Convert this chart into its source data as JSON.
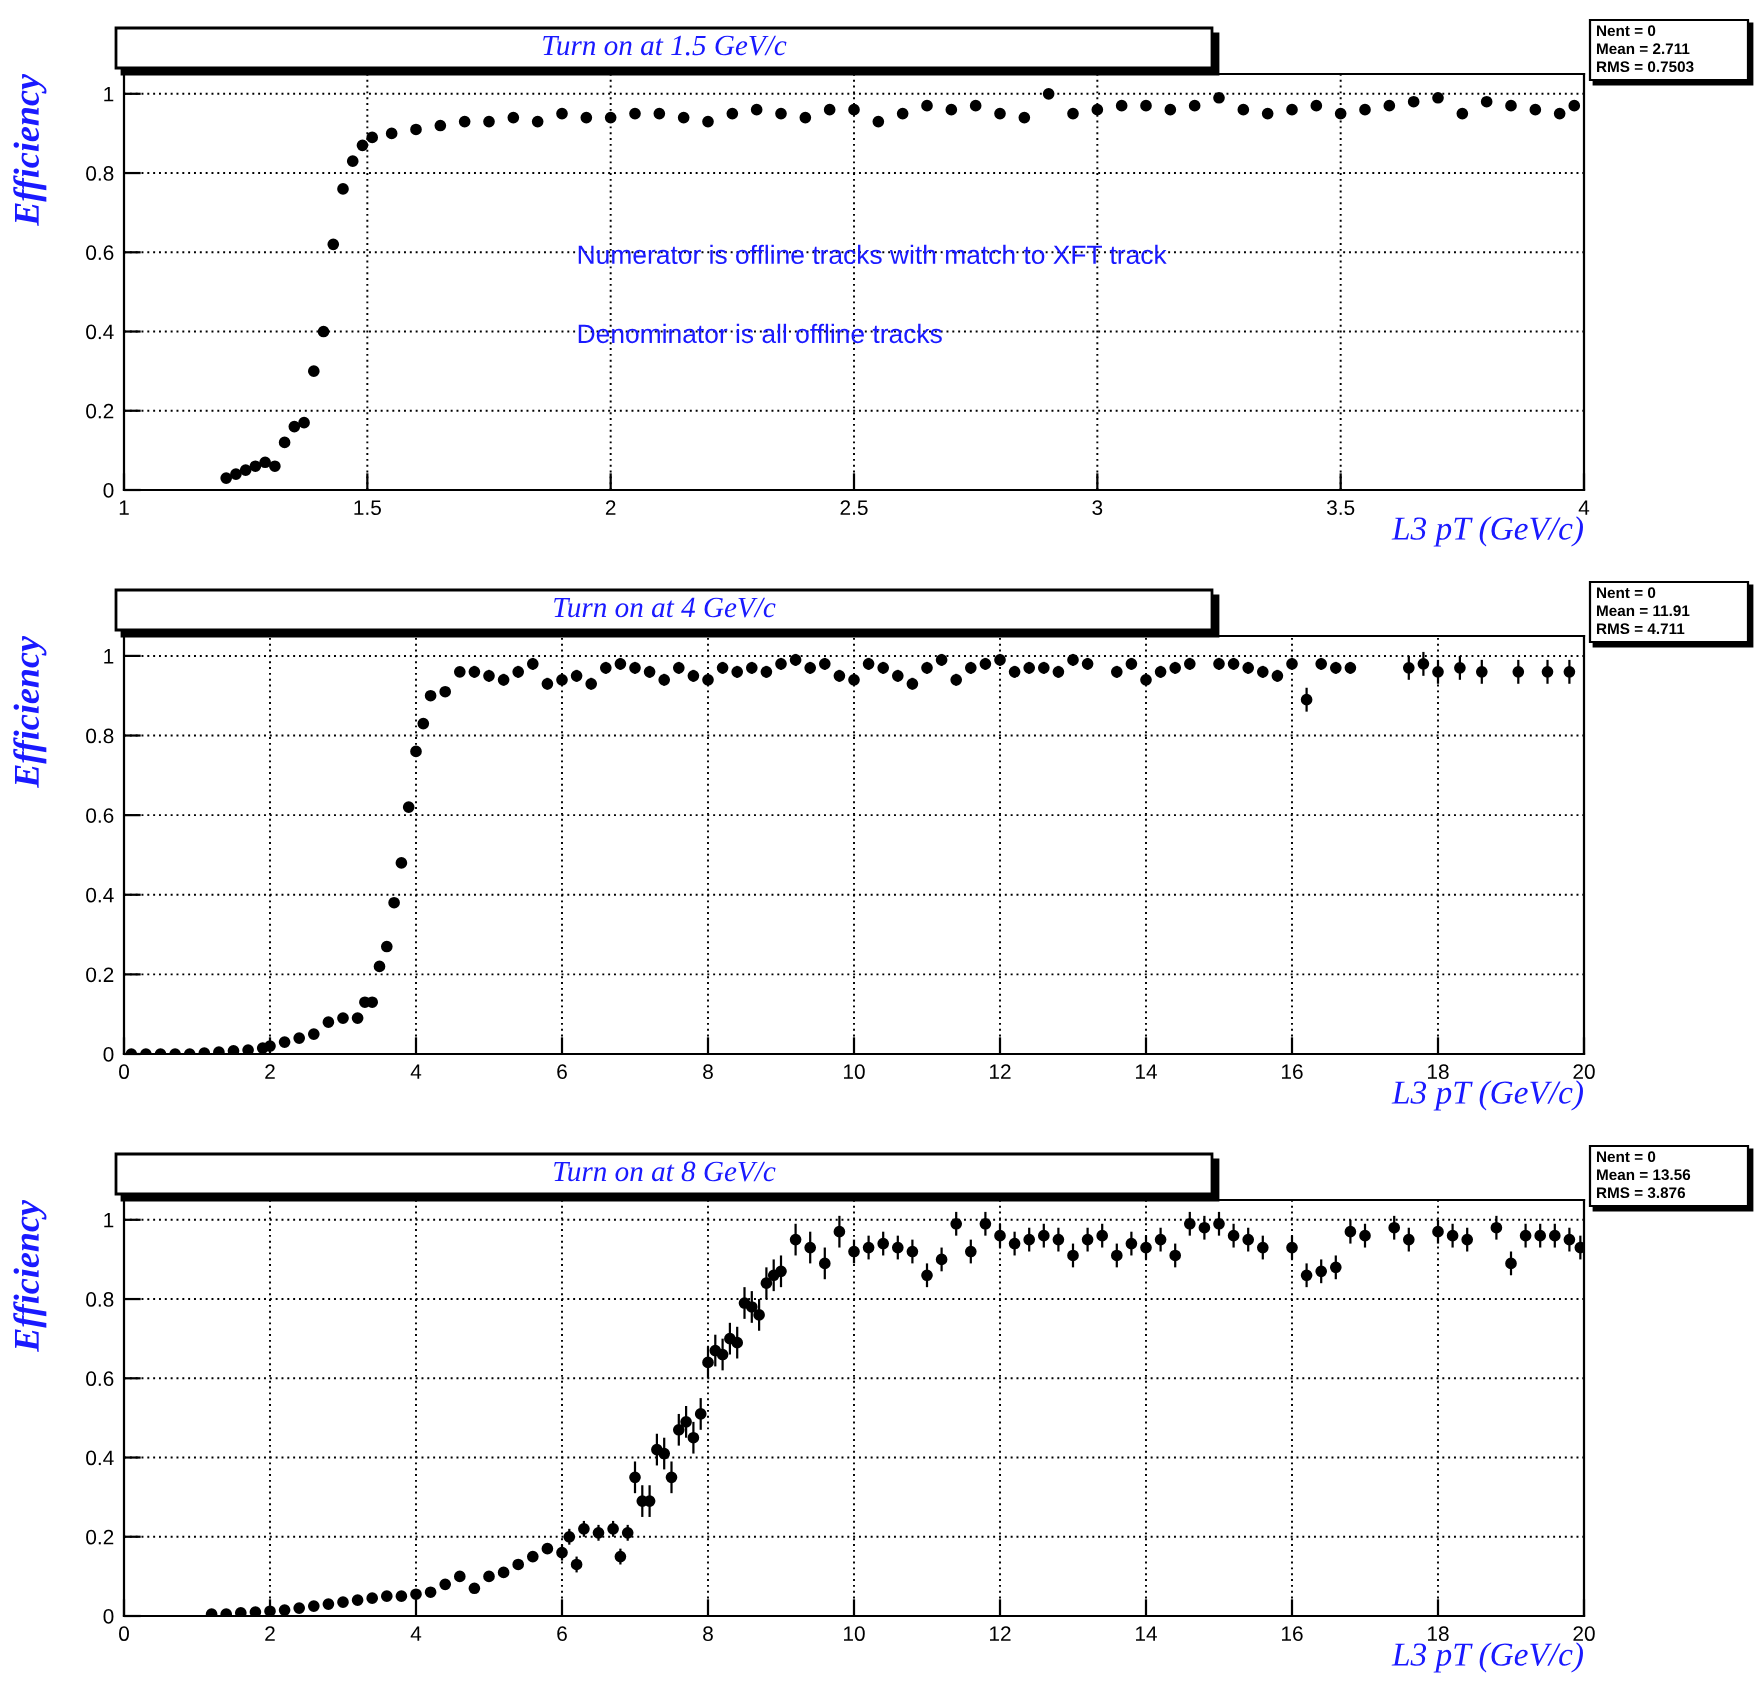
{
  "chart_data": [
    {
      "type": "scatter",
      "title": "Turn on at 1.5 GeV/c",
      "xlabel": "L3 pT (GeV/c)",
      "ylabel": "Efficiency",
      "annotations": [
        "Nent = 0",
        "Mean = 2.711",
        "RMS = 0.7503",
        "Numerator is offline tracks with match to XFT track",
        "Denominator is all offline tracks"
      ],
      "xlim": [
        1,
        4
      ],
      "xticks": [
        1,
        1.5,
        2,
        2.5,
        3,
        3.5,
        4
      ],
      "ylim": [
        0,
        1.05
      ],
      "yticks": [
        0,
        0.2,
        0.4,
        0.6,
        0.8,
        1
      ],
      "grid": true,
      "marker": "circle",
      "series": [
        {
          "color": "#000000",
          "x": [
            1.21,
            1.23,
            1.25,
            1.27,
            1.29,
            1.31,
            1.33,
            1.35,
            1.37,
            1.39,
            1.41,
            1.43,
            1.45,
            1.47,
            1.49,
            1.51,
            1.55,
            1.6,
            1.65,
            1.7,
            1.75,
            1.8,
            1.85,
            1.9,
            1.95,
            2.0,
            2.05,
            2.1,
            2.15,
            2.2,
            2.25,
            2.3,
            2.35,
            2.4,
            2.45,
            2.5,
            2.55,
            2.6,
            2.65,
            2.7,
            2.75,
            2.8,
            2.85,
            2.9,
            2.95,
            3.0,
            3.05,
            3.1,
            3.15,
            3.2,
            3.25,
            3.3,
            3.35,
            3.4,
            3.45,
            3.5,
            3.55,
            3.6,
            3.65,
            3.7,
            3.75,
            3.8,
            3.85,
            3.9,
            3.95,
            3.98
          ],
          "values": [
            0.03,
            0.04,
            0.05,
            0.06,
            0.07,
            0.06,
            0.12,
            0.16,
            0.17,
            0.3,
            0.4,
            0.62,
            0.76,
            0.83,
            0.87,
            0.89,
            0.9,
            0.91,
            0.92,
            0.93,
            0.93,
            0.94,
            0.93,
            0.95,
            0.94,
            0.94,
            0.95,
            0.95,
            0.94,
            0.93,
            0.95,
            0.96,
            0.95,
            0.94,
            0.96,
            0.96,
            0.93,
            0.95,
            0.97,
            0.96,
            0.97,
            0.95,
            0.94,
            1.0,
            0.95,
            0.96,
            0.97,
            0.97,
            0.96,
            0.97,
            0.99,
            0.96,
            0.95,
            0.96,
            0.97,
            0.95,
            0.96,
            0.97,
            0.98,
            0.99,
            0.95,
            0.98,
            0.97,
            0.96,
            0.95,
            0.97
          ]
        }
      ]
    },
    {
      "type": "scatter",
      "title": "Turn on at 4 GeV/c",
      "xlabel": "L3 pT (GeV/c)",
      "ylabel": "Efficiency",
      "annotations": [
        "Nent = 0",
        "Mean = 11.91",
        "RMS = 4.711"
      ],
      "xlim": [
        0,
        20
      ],
      "xticks": [
        0,
        2,
        4,
        6,
        8,
        10,
        12,
        14,
        16,
        18,
        20
      ],
      "ylim": [
        0,
        1.05
      ],
      "yticks": [
        0,
        0.2,
        0.4,
        0.6,
        0.8,
        1
      ],
      "grid": true,
      "marker": "circle",
      "series": [
        {
          "color": "#000000",
          "x": [
            0.1,
            0.3,
            0.5,
            0.7,
            0.9,
            1.1,
            1.3,
            1.5,
            1.7,
            1.9,
            2.0,
            2.2,
            2.4,
            2.6,
            2.8,
            3.0,
            3.2,
            3.3,
            3.4,
            3.5,
            3.6,
            3.7,
            3.8,
            3.9,
            4.0,
            4.1,
            4.2,
            4.4,
            4.6,
            4.8,
            5.0,
            5.2,
            5.4,
            5.6,
            5.8,
            6.0,
            6.2,
            6.4,
            6.6,
            6.8,
            7.0,
            7.2,
            7.4,
            7.6,
            7.8,
            8.0,
            8.2,
            8.4,
            8.6,
            8.8,
            9.0,
            9.2,
            9.4,
            9.6,
            9.8,
            10.0,
            10.2,
            10.4,
            10.6,
            10.8,
            11.0,
            11.2,
            11.4,
            11.6,
            11.8,
            12.0,
            12.2,
            12.4,
            12.6,
            12.8,
            13.0,
            13.2,
            13.6,
            13.8,
            14.0,
            14.2,
            14.4,
            14.6,
            15.0,
            15.2,
            15.4,
            15.6,
            15.8,
            16.0,
            16.2,
            16.4,
            16.6,
            16.8,
            17.6,
            17.8,
            18.0,
            18.3,
            18.6,
            19.1,
            19.5,
            19.8
          ],
          "values": [
            0,
            0,
            0,
            0,
            0,
            0.002,
            0.005,
            0.008,
            0.01,
            0.015,
            0.02,
            0.03,
            0.04,
            0.05,
            0.08,
            0.09,
            0.09,
            0.13,
            0.13,
            0.22,
            0.27,
            0.38,
            0.48,
            0.62,
            0.76,
            0.83,
            0.9,
            0.91,
            0.96,
            0.96,
            0.95,
            0.94,
            0.96,
            0.98,
            0.93,
            0.94,
            0.95,
            0.93,
            0.97,
            0.98,
            0.97,
            0.96,
            0.94,
            0.97,
            0.95,
            0.94,
            0.97,
            0.96,
            0.97,
            0.96,
            0.98,
            0.99,
            0.97,
            0.98,
            0.95,
            0.94,
            0.98,
            0.97,
            0.95,
            0.93,
            0.97,
            0.99,
            0.94,
            0.97,
            0.98,
            0.99,
            0.96,
            0.97,
            0.97,
            0.96,
            0.99,
            0.98,
            0.96,
            0.98,
            0.94,
            0.96,
            0.97,
            0.98,
            0.98,
            0.98,
            0.97,
            0.96,
            0.95,
            0.98,
            0.89,
            0.98,
            0.97,
            0.97,
            0.97,
            0.98,
            0.96,
            0.97,
            0.96,
            0.96,
            0.96,
            0.96
          ],
          "errors": [
            0.005,
            0.005,
            0.005,
            0.005,
            0.005,
            0.005,
            0.005,
            0.005,
            0.005,
            0.005,
            0.005,
            0.005,
            0.005,
            0.005,
            0.005,
            0.01,
            0.01,
            0.01,
            0.01,
            0.01,
            0.01,
            0.01,
            0.01,
            0.01,
            0.01,
            0.01,
            0.01,
            0.01,
            0.01,
            0.015,
            0.015,
            0.015,
            0.015,
            0.015,
            0.015,
            0.015,
            0.015,
            0.015,
            0.015,
            0.015,
            0.015,
            0.015,
            0.015,
            0.015,
            0.015,
            0.015,
            0.015,
            0.015,
            0.015,
            0.015,
            0.015,
            0.015,
            0.015,
            0.015,
            0.015,
            0.015,
            0.015,
            0.015,
            0.015,
            0.015,
            0.015,
            0.015,
            0.015,
            0.015,
            0.015,
            0.015,
            0.015,
            0.015,
            0.015,
            0.015,
            0.015,
            0.015,
            0.015,
            0.015,
            0.015,
            0.015,
            0.015,
            0.015,
            0.015,
            0.015,
            0.015,
            0.015,
            0.015,
            0.015,
            0.03,
            0.015,
            0.015,
            0.015,
            0.03,
            0.03,
            0.03,
            0.03,
            0.03,
            0.03,
            0.03,
            0.03
          ]
        }
      ]
    },
    {
      "type": "scatter",
      "title": "Turn on at 8 GeV/c",
      "xlabel": "L3 pT (GeV/c)",
      "ylabel": "Efficiency",
      "annotations": [
        "Nent = 0",
        "Mean = 13.56",
        "RMS = 3.876"
      ],
      "xlim": [
        0,
        20
      ],
      "xticks": [
        0,
        2,
        4,
        6,
        8,
        10,
        12,
        14,
        16,
        18,
        20
      ],
      "ylim": [
        0,
        1.05
      ],
      "yticks": [
        0,
        0.2,
        0.4,
        0.6,
        0.8,
        1
      ],
      "grid": true,
      "marker": "circle",
      "series": [
        {
          "color": "#000000",
          "x": [
            1.2,
            1.4,
            1.6,
            1.8,
            2.0,
            2.2,
            2.4,
            2.6,
            2.8,
            3.0,
            3.2,
            3.4,
            3.6,
            3.8,
            4.0,
            4.2,
            4.4,
            4.6,
            4.8,
            5.0,
            5.2,
            5.4,
            5.6,
            5.8,
            6.0,
            6.1,
            6.2,
            6.3,
            6.5,
            6.7,
            6.8,
            6.9,
            7.0,
            7.1,
            7.2,
            7.3,
            7.4,
            7.5,
            7.6,
            7.7,
            7.8,
            7.9,
            8.0,
            8.1,
            8.2,
            8.3,
            8.4,
            8.5,
            8.6,
            8.7,
            8.8,
            8.9,
            9.0,
            9.2,
            9.4,
            9.6,
            9.8,
            10.0,
            10.2,
            10.4,
            10.6,
            10.8,
            11.0,
            11.2,
            11.4,
            11.6,
            11.8,
            12.0,
            12.2,
            12.4,
            12.6,
            12.8,
            13.0,
            13.2,
            13.4,
            13.6,
            13.8,
            14.0,
            14.2,
            14.4,
            14.6,
            14.8,
            15.0,
            15.2,
            15.4,
            15.6,
            16.0,
            16.2,
            16.4,
            16.6,
            16.8,
            17.0,
            17.4,
            17.6,
            18.0,
            18.2,
            18.4,
            18.8,
            19.0,
            19.2,
            19.4,
            19.6,
            19.8,
            19.95
          ],
          "values": [
            0.005,
            0.005,
            0.008,
            0.01,
            0.012,
            0.015,
            0.02,
            0.025,
            0.03,
            0.035,
            0.04,
            0.045,
            0.05,
            0.05,
            0.055,
            0.06,
            0.08,
            0.1,
            0.07,
            0.1,
            0.11,
            0.13,
            0.15,
            0.17,
            0.16,
            0.2,
            0.13,
            0.22,
            0.21,
            0.22,
            0.15,
            0.21,
            0.35,
            0.29,
            0.29,
            0.42,
            0.41,
            0.35,
            0.47,
            0.49,
            0.45,
            0.51,
            0.64,
            0.67,
            0.66,
            0.7,
            0.69,
            0.79,
            0.78,
            0.76,
            0.84,
            0.86,
            0.87,
            0.95,
            0.93,
            0.89,
            0.97,
            0.92,
            0.93,
            0.94,
            0.93,
            0.92,
            0.86,
            0.9,
            0.99,
            0.92,
            0.99,
            0.96,
            0.94,
            0.95,
            0.96,
            0.95,
            0.91,
            0.95,
            0.96,
            0.91,
            0.94,
            0.93,
            0.95,
            0.91,
            0.99,
            0.98,
            0.99,
            0.96,
            0.95,
            0.93,
            0.93,
            0.86,
            0.87,
            0.88,
            0.97,
            0.96,
            0.98,
            0.95,
            0.97,
            0.96,
            0.95,
            0.98,
            0.89,
            0.96,
            0.96,
            0.96,
            0.95,
            0.93
          ],
          "errors": [
            0.005,
            0.005,
            0.005,
            0.005,
            0.005,
            0.005,
            0.005,
            0.005,
            0.005,
            0.005,
            0.005,
            0.005,
            0.005,
            0.005,
            0.01,
            0.01,
            0.01,
            0.01,
            0.01,
            0.01,
            0.01,
            0.01,
            0.01,
            0.01,
            0.02,
            0.02,
            0.02,
            0.02,
            0.02,
            0.02,
            0.02,
            0.02,
            0.04,
            0.04,
            0.04,
            0.04,
            0.04,
            0.04,
            0.04,
            0.04,
            0.04,
            0.04,
            0.04,
            0.04,
            0.04,
            0.04,
            0.04,
            0.04,
            0.04,
            0.04,
            0.04,
            0.04,
            0.04,
            0.04,
            0.04,
            0.04,
            0.04,
            0.03,
            0.03,
            0.03,
            0.03,
            0.03,
            0.03,
            0.03,
            0.03,
            0.03,
            0.03,
            0.03,
            0.03,
            0.03,
            0.03,
            0.03,
            0.03,
            0.03,
            0.03,
            0.03,
            0.03,
            0.03,
            0.03,
            0.03,
            0.03,
            0.03,
            0.03,
            0.03,
            0.03,
            0.03,
            0.03,
            0.03,
            0.03,
            0.03,
            0.03,
            0.03,
            0.03,
            0.03,
            0.03,
            0.03,
            0.03,
            0.03,
            0.03,
            0.03,
            0.03,
            0.03,
            0.03,
            0.03
          ]
        }
      ]
    }
  ]
}
